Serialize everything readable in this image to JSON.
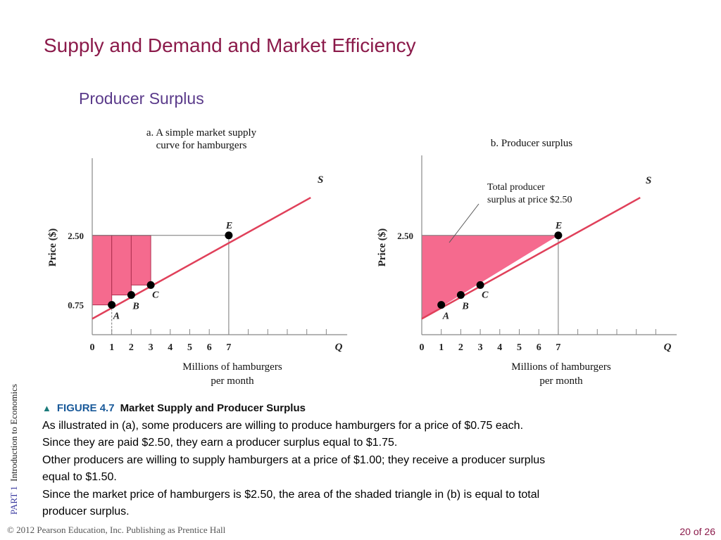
{
  "slide": {
    "title": "Supply and Demand and Market Efficiency",
    "subtitle": "Producer Surplus",
    "side_part": "PART  1",
    "side_text": "Introduction  to  Economics",
    "footer": "© 2012 Pearson Education, Inc. Publishing as Prentice Hall",
    "page": "20 of 26"
  },
  "figure": {
    "triangle": "▲",
    "number": "FIGURE 4.7",
    "title": "Market Supply and Producer Surplus",
    "lines": [
      "As illustrated in (a), some producers are willing to produce hamburgers for a price of $0.75 each.",
      "Since they are paid $2.50, they earn a producer surplus equal to $1.75.",
      "Other producers are willing to supply hamburgers at a price of $1.00; they receive a producer surplus",
      "equal to $1.50.",
      "Since the market price of hamburgers is $2.50, the area of the shaded triangle in (b) is equal to total",
      "producer surplus."
    ]
  },
  "colors": {
    "supply_line": "#e0405a",
    "surplus_fill": "#f56a8e",
    "title": "#8b1a4a",
    "subtitle": "#5a3a8a"
  },
  "chart_data": [
    {
      "type": "line",
      "panel_title_lines": [
        "a. A simple market supply",
        "curve for hamburgers"
      ],
      "xlabel_lines": [
        "Millions of hamburgers",
        "per month"
      ],
      "ylabel": "Price ($)",
      "x_axis_letter": "Q",
      "x_ticks": [
        "0",
        "1",
        "2",
        "3",
        "4",
        "5",
        "6",
        "7"
      ],
      "y_ticks": [
        "0.75",
        "2.50"
      ],
      "xlim": [
        0,
        12.5
      ],
      "ylim": [
        0,
        3.6
      ],
      "market_price": 2.5,
      "series": [
        {
          "name": "S",
          "x": [
            0,
            11.2
          ],
          "y": [
            0.4,
            3.45
          ]
        }
      ],
      "points": [
        {
          "label": "A",
          "x": 1,
          "y": 0.75
        },
        {
          "label": "B",
          "x": 2,
          "y": 1.0
        },
        {
          "label": "C",
          "x": 3,
          "y": 1.25
        },
        {
          "label": "E",
          "x": 7,
          "y": 2.5
        }
      ],
      "surplus_bars": [
        {
          "x0": 0,
          "x1": 1,
          "y0": 0.75,
          "y1": 2.5
        },
        {
          "x0": 1,
          "x1": 2,
          "y0": 1.0,
          "y1": 2.5
        },
        {
          "x0": 2,
          "x1": 3,
          "y0": 1.25,
          "y1": 2.5
        }
      ]
    },
    {
      "type": "area",
      "panel_title_lines": [
        "b. Producer surplus"
      ],
      "xlabel_lines": [
        "Millions of hamburgers",
        "per month"
      ],
      "ylabel": "Price ($)",
      "x_axis_letter": "Q",
      "x_ticks": [
        "0",
        "1",
        "2",
        "3",
        "4",
        "5",
        "6",
        "7"
      ],
      "y_ticks": [
        "2.50"
      ],
      "xlim": [
        0,
        12.5
      ],
      "ylim": [
        0,
        3.6
      ],
      "market_price": 2.5,
      "annotation_lines": [
        "Total producer",
        "surplus at price $2.50"
      ],
      "series": [
        {
          "name": "S",
          "x": [
            0,
            11.2
          ],
          "y": [
            0.4,
            3.45
          ]
        }
      ],
      "points": [
        {
          "label": "A",
          "x": 1,
          "y": 0.75
        },
        {
          "label": "B",
          "x": 2,
          "y": 1.0
        },
        {
          "label": "C",
          "x": 3,
          "y": 1.25
        },
        {
          "label": "E",
          "x": 7,
          "y": 2.5
        }
      ],
      "surplus_triangle": {
        "x": [
          0,
          7,
          0
        ],
        "y": [
          0.4,
          2.5,
          2.5
        ]
      }
    }
  ]
}
